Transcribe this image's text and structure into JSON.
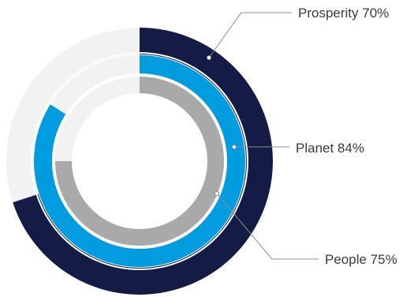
{
  "chart_data": {
    "type": "radial-bar",
    "series": [
      {
        "name": "Prosperity",
        "value": 70,
        "label": "Prosperity 70%",
        "color": "#141c45"
      },
      {
        "name": "Planet",
        "value": 84,
        "label": "Planet 84%",
        "color": "#009ce0"
      },
      {
        "name": "People",
        "value": 75,
        "label": "People 75%",
        "color": "#a9a9a9"
      }
    ],
    "max": 100,
    "track_color": "#f2f2f2",
    "legend": "leader-line labels on right"
  }
}
